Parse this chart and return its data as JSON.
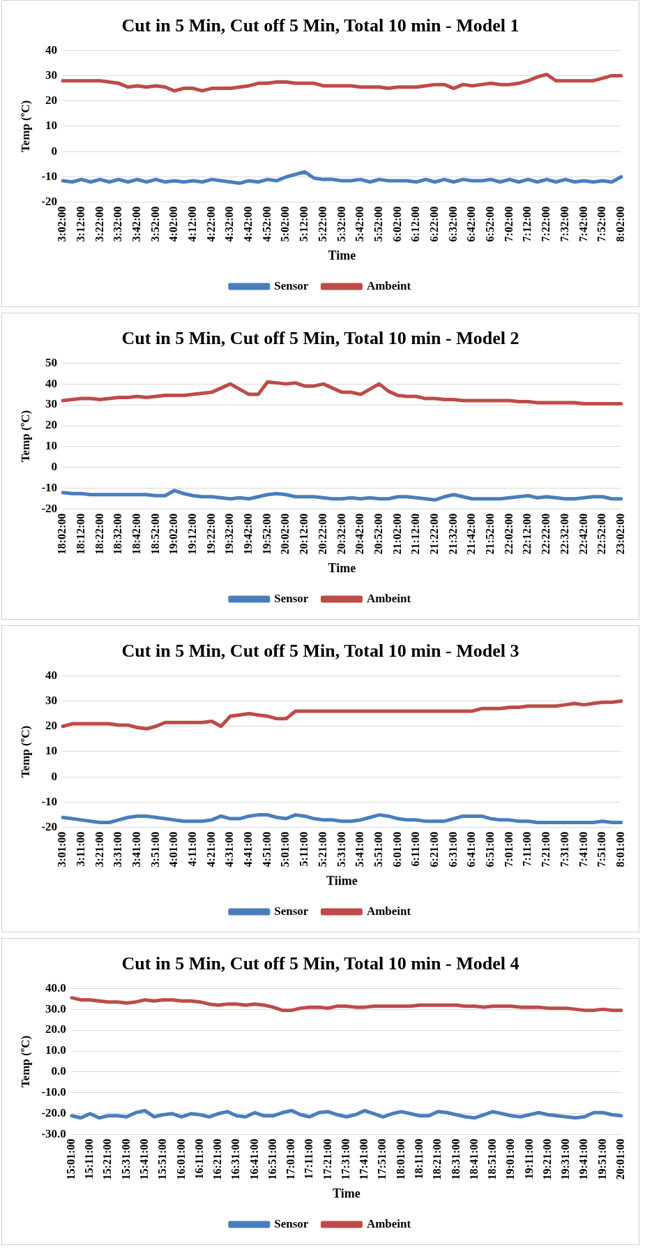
{
  "chart_data": [
    {
      "type": "line",
      "title": "Cut in 5 Min, Cut off 5 Min, Total 10 min - Model 1",
      "xlabel": "Time",
      "ylabel": "Temp (ºC)",
      "categories": [
        "3:02:00",
        null,
        "3:12:00",
        null,
        "3:22:00",
        null,
        "3:32:00",
        null,
        "3:42:00",
        null,
        "3:52:00",
        null,
        "4:02:00",
        null,
        "4:12:00",
        null,
        "4:22:00",
        null,
        "4:32:00",
        null,
        "4:42:00",
        null,
        "4:52:00",
        null,
        "5:02:00",
        null,
        "5:12:00",
        null,
        "5:22:00",
        null,
        "5:32:00",
        null,
        "5:42:00",
        null,
        "5:52:00",
        null,
        "6:02:00",
        null,
        "6:12:00",
        null,
        "6:22:00",
        null,
        "6:32:00",
        null,
        "6:42:00",
        null,
        "6:52:00",
        null,
        "7:02:00",
        null,
        "7:12:00",
        null,
        "7:22:00",
        null,
        "7:32:00",
        null,
        "7:42:00",
        null,
        "7:52:00",
        null,
        "8:02:00"
      ],
      "series": [
        {
          "name": "Sensor",
          "color": "#4a7ebb",
          "values": [
            -11.5,
            -12,
            -11,
            -12,
            -11,
            -12,
            -11,
            -12,
            -11,
            -12,
            -11,
            -12,
            -11.5,
            -12,
            -11.5,
            -12,
            -11,
            -11.5,
            -12,
            -12.5,
            -11.5,
            -12,
            -11,
            -11.5,
            -10,
            -9,
            -8,
            -10.5,
            -11,
            -11,
            -11.5,
            -11.5,
            -11,
            -12,
            -11,
            -11.5,
            -11.5,
            -11.5,
            -12,
            -11,
            -12,
            -11,
            -12,
            -11,
            -11.5,
            -11.5,
            -11,
            -12,
            -11,
            -12,
            -11,
            -12,
            -11,
            -12,
            -11,
            -12,
            -11.5,
            -12,
            -11.5,
            -12,
            -10
          ]
        },
        {
          "name": "Ambeint",
          "color": "#be4b48",
          "values": [
            28,
            28,
            28,
            28,
            28,
            27.5,
            27,
            25.5,
            26,
            25.5,
            26,
            25.5,
            24,
            25,
            25,
            24,
            25,
            25,
            25,
            25.5,
            26,
            27,
            27,
            27.5,
            27.5,
            27,
            27,
            27,
            26,
            26,
            26,
            26,
            25.5,
            25.5,
            25.5,
            25,
            25.5,
            25.5,
            25.5,
            26,
            26.5,
            26.5,
            25,
            26.5,
            26,
            26.5,
            27,
            26.5,
            26.5,
            27,
            28,
            29.5,
            30.5,
            28,
            28,
            28,
            28,
            28,
            29,
            30,
            30
          ]
        }
      ],
      "ylim": [
        -20,
        40
      ],
      "yticks": [
        -20,
        -10,
        0,
        10,
        20,
        30,
        40
      ],
      "grid": "y",
      "legend": "bottom",
      "marker": "none"
    },
    {
      "type": "line",
      "title": "Cut in 5 Min, Cut off 5 Min, Total 10 min - Model 2",
      "xlabel": "Time",
      "ylabel": "Temp (ºC)",
      "categories": [
        "18:02:00",
        null,
        "18:12:00",
        null,
        "18:22:00",
        null,
        "18:32:00",
        null,
        "18:42:00",
        null,
        "18:52:00",
        null,
        "19:02:00",
        null,
        "19:12:00",
        null,
        "19:22:00",
        null,
        "19:32:00",
        null,
        "19:42:00",
        null,
        "19:52:00",
        null,
        "20:02:00",
        null,
        "20:12:00",
        null,
        "20:22:00",
        null,
        "20:32:00",
        null,
        "20:42:00",
        null,
        "20:52:00",
        null,
        "21:02:00",
        null,
        "21:12:00",
        null,
        "21:22:00",
        null,
        "21:32:00",
        null,
        "21:42:00",
        null,
        "21:52:00",
        null,
        "22:02:00",
        null,
        "22:12:00",
        null,
        "22:22:00",
        null,
        "22:32:00",
        null,
        "22:42:00",
        null,
        "22:52:00",
        null,
        "23:02:00"
      ],
      "series": [
        {
          "name": "Sensor",
          "color": "#4a7ebb",
          "values": [
            -12,
            -12.5,
            -12.5,
            -13,
            -13,
            -13,
            -13,
            -13,
            -13,
            -13,
            -13.5,
            -13.5,
            -11,
            -12.5,
            -13.5,
            -14,
            -14,
            -14.5,
            -15,
            -14.5,
            -15,
            -14,
            -13,
            -12.5,
            -13,
            -14,
            -14,
            -14,
            -14.5,
            -15,
            -15,
            -14.5,
            -15,
            -14.5,
            -15,
            -15,
            -14,
            -14,
            -14.5,
            -15,
            -15.5,
            -14,
            -13,
            -14,
            -15,
            -15,
            -15,
            -15,
            -14.5,
            -14,
            -13.5,
            -14.5,
            -14,
            -14.5,
            -15,
            -15,
            -14.5,
            -14,
            -14,
            -15,
            -15
          ]
        },
        {
          "name": "Ambeint",
          "color": "#be4b48",
          "values": [
            32,
            32.5,
            33,
            33,
            32.5,
            33,
            33.5,
            33.5,
            34,
            33.5,
            34,
            34.5,
            34.5,
            34.5,
            35,
            35.5,
            36,
            38,
            40,
            37.5,
            35,
            35,
            41,
            40.5,
            40,
            40.5,
            39,
            39,
            40,
            38,
            36,
            36,
            35,
            37.5,
            40,
            36.5,
            34.5,
            34,
            34,
            33,
            33,
            32.5,
            32.5,
            32,
            32,
            32,
            32,
            32,
            32,
            31.5,
            31.5,
            31,
            31,
            31,
            31,
            31,
            30.5,
            30.5,
            30.5,
            30.5,
            30.5
          ]
        }
      ],
      "ylim": [
        -20,
        50
      ],
      "yticks": [
        -20,
        -10,
        0,
        10,
        20,
        30,
        40,
        50
      ],
      "grid": "y",
      "legend": "bottom",
      "marker": "none"
    },
    {
      "type": "line",
      "title": "Cut in 5 Min, Cut off 5 Min, Total 10 min - Model 3",
      "xlabel": "Tiime",
      "ylabel": "Temp (ºC)",
      "categories": [
        "3:01:00",
        null,
        "3:11:00",
        null,
        "3:21:00",
        null,
        "3:31:00",
        null,
        "3:41:00",
        null,
        "3:51:00",
        null,
        "4:01:00",
        null,
        "4:11:00",
        null,
        "4:21:00",
        null,
        "4:31:00",
        null,
        "4:41:00",
        null,
        "4:51:00",
        null,
        "5:01:00",
        null,
        "5:11:00",
        null,
        "5:21:00",
        null,
        "5:31:00",
        null,
        "5:41:00",
        null,
        "5:51:00",
        null,
        "6:01:00",
        null,
        "6:11:00",
        null,
        "6:21:00",
        null,
        "6:31:00",
        null,
        "6:41:00",
        null,
        "6:51:00",
        null,
        "7:01:00",
        null,
        "7:11:00",
        null,
        "7:21:00",
        null,
        "7:31:00",
        null,
        "7:41:00",
        null,
        "7:51:00",
        null,
        "8:01:00"
      ],
      "series": [
        {
          "name": "Sensor",
          "color": "#4a7ebb",
          "values": [
            -16,
            -16.5,
            -17,
            -17.5,
            -18,
            -18,
            -17,
            -16,
            -15.5,
            -15.5,
            -16,
            -16.5,
            -17,
            -17.5,
            -17.5,
            -17.5,
            -17,
            -15.5,
            -16.5,
            -16.5,
            -15.5,
            -15,
            -15,
            -16,
            -16.5,
            -15,
            -15.5,
            -16.5,
            -17,
            -17,
            -17.5,
            -17.5,
            -17,
            -16,
            -15,
            -15.5,
            -16.5,
            -17,
            -17,
            -17.5,
            -17.5,
            -17.5,
            -16.5,
            -15.5,
            -15.5,
            -15.5,
            -16.5,
            -17,
            -17,
            -17.5,
            -17.5,
            -18,
            -18,
            -18,
            -18,
            -18,
            -18,
            -18,
            -17.5,
            -18,
            -18
          ]
        },
        {
          "name": "Ambeint",
          "color": "#be4b48",
          "values": [
            20,
            21,
            21,
            21,
            21,
            21,
            20.5,
            20.5,
            19.5,
            19,
            20,
            21.5,
            21.5,
            21.5,
            21.5,
            21.5,
            22,
            20,
            24,
            24.5,
            25,
            24.5,
            24,
            23,
            23,
            26,
            26,
            26,
            26,
            26,
            26,
            26,
            26,
            26,
            26,
            26,
            26,
            26,
            26,
            26,
            26,
            26,
            26,
            26,
            26,
            27,
            27,
            27,
            27.5,
            27.5,
            28,
            28,
            28,
            28,
            28.5,
            29,
            28.5,
            29,
            29.5,
            29.5,
            30
          ]
        }
      ],
      "ylim": [
        -20,
        40
      ],
      "yticks": [
        -20,
        -10,
        0,
        10,
        20,
        30,
        40
      ],
      "grid": "y",
      "legend": "bottom",
      "marker": "none"
    },
    {
      "type": "line",
      "title": "Cut in 5 Min, Cut off 5 Min, Total 10 min - Model 4",
      "xlabel": "Time",
      "ylabel": "Temp (ºC)",
      "categories": [
        "15:01:00",
        null,
        "15:11:00",
        null,
        "15:21:00",
        null,
        "15:31:00",
        null,
        "15:41:00",
        null,
        "15:51:00",
        null,
        "16:01:00",
        null,
        "16:11:00",
        null,
        "16:21:00",
        null,
        "16:31:00",
        null,
        "16:41:00",
        null,
        "16:51:00",
        null,
        "17:01:00",
        null,
        "17:11:00",
        null,
        "17:21:00",
        null,
        "17:31:00",
        null,
        "17:41:00",
        null,
        "17:51:00",
        null,
        "18:01:00",
        null,
        "18:11:00",
        null,
        "18:21:00",
        null,
        "18:31:00",
        null,
        "18:41:00",
        null,
        "18:51:00",
        null,
        "19:01:00",
        null,
        "19:11:00",
        null,
        "19:21:00",
        null,
        "19:31:00",
        null,
        "19:41:00",
        null,
        "19:51:00",
        null,
        "20:01:00"
      ],
      "series": [
        {
          "name": "Sensor",
          "color": "#4a7ebb",
          "values": [
            -21,
            -22,
            -20,
            -22,
            -21,
            -21,
            -21.5,
            -19.5,
            -18.5,
            -21.5,
            -20.5,
            -20,
            -21.5,
            -20,
            -20.5,
            -21.5,
            -20,
            -19,
            -21,
            -21.5,
            -19.5,
            -21,
            -21,
            -19.5,
            -18.5,
            -20.5,
            -21.5,
            -19.5,
            -19,
            -20.5,
            -21.5,
            -20.5,
            -18.5,
            -20,
            -21.5,
            -20,
            -19,
            -20,
            -21,
            -21,
            -19,
            -19.5,
            -20.5,
            -21.5,
            -22,
            -20.5,
            -19,
            -20,
            -21,
            -21.5,
            -20.5,
            -19.5,
            -20.5,
            -21,
            -21.5,
            -22,
            -21.5,
            -19.5,
            -19.5,
            -20.5,
            -21
          ]
        },
        {
          "name": "Ambeint",
          "color": "#be4b48",
          "values": [
            35.5,
            34.5,
            34.5,
            34,
            33.5,
            33.5,
            33,
            33.5,
            34.5,
            34,
            34.5,
            34.5,
            34,
            34,
            33.5,
            32.5,
            32,
            32.5,
            32.5,
            32,
            32.5,
            32,
            31,
            29.5,
            29.5,
            30.5,
            31,
            31,
            30.5,
            31.5,
            31.5,
            31,
            31,
            31.5,
            31.5,
            31.5,
            31.5,
            31.5,
            32,
            32,
            32,
            32,
            32,
            31.5,
            31.5,
            31,
            31.5,
            31.5,
            31.5,
            31,
            31,
            31,
            30.5,
            30.5,
            30.5,
            30,
            29.5,
            29.5,
            30,
            29.5,
            29.5
          ]
        }
      ],
      "ylim": [
        -30,
        40
      ],
      "yticks": [
        {
          "value": -30,
          "label": "-30.0"
        },
        {
          "value": -20,
          "label": "-20.0"
        },
        {
          "value": -10,
          "label": "-10.0"
        },
        {
          "value": 0,
          "label": "0.0"
        },
        {
          "value": 10,
          "label": "10.0"
        },
        {
          "value": 20,
          "label": "20.0"
        },
        {
          "value": 30,
          "label": "30.0"
        },
        {
          "value": 40,
          "label": "40.0"
        }
      ],
      "grid": "y",
      "legend": "bottom",
      "marker": "none"
    }
  ]
}
